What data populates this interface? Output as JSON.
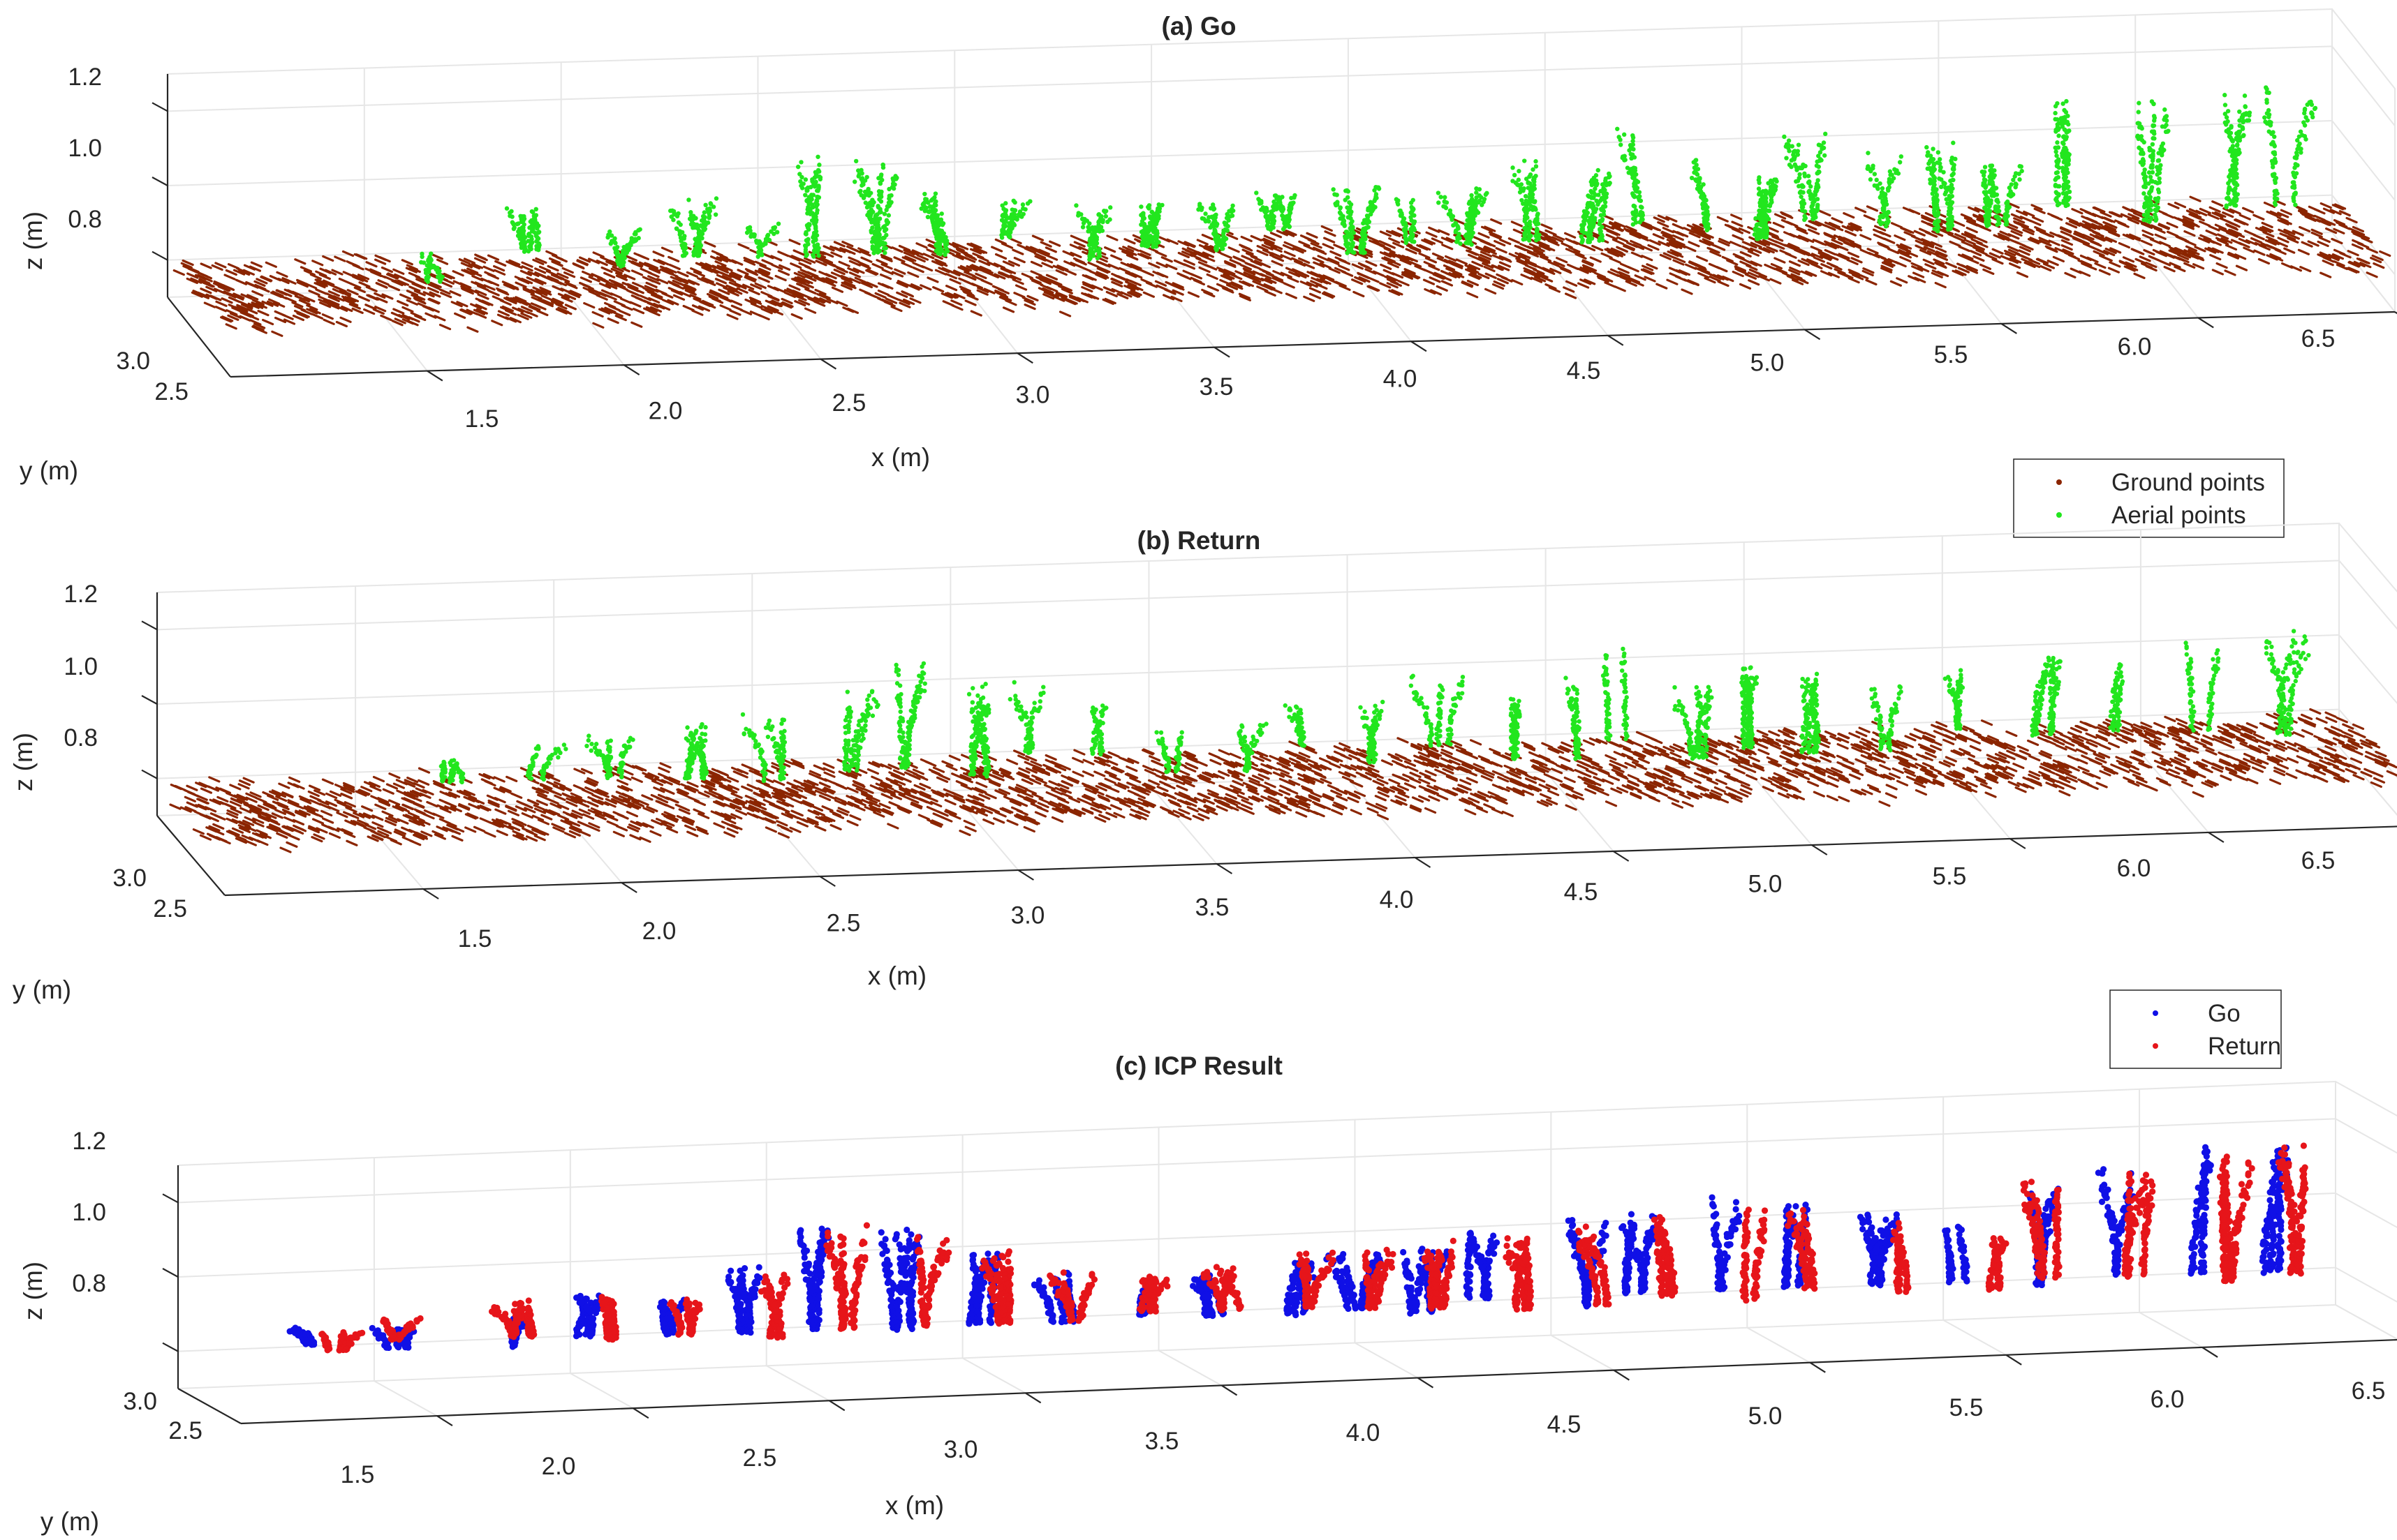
{
  "colors": {
    "ground": "#8b2500",
    "aerial": "#22e61e",
    "go": "#1010e6",
    "return": "#e6151a",
    "grid": "#e6e6e6",
    "axis": "#262626"
  },
  "chart_data": [
    {
      "type": "scatter",
      "projection": "3d",
      "title": "(a) Go",
      "xlabel": "x (m)",
      "ylabel": "y (m)",
      "zlabel": "z (m)",
      "xlim": [
        1.0,
        6.5
      ],
      "ylim": [
        2.4,
        3.0
      ],
      "zlim": [
        0.7,
        1.3
      ],
      "x_ticks": [
        "1.5",
        "2.0",
        "2.5",
        "3.0",
        "3.5",
        "4.0",
        "4.5",
        "5.0",
        "5.5",
        "6.0",
        "6.5"
      ],
      "y_ticks": [
        "2.5",
        "3.0"
      ],
      "z_ticks": [
        "0.8",
        "1.0",
        "1.2"
      ],
      "grid": true,
      "legend": {
        "placement": "bottom-right",
        "entries": [
          "Ground points",
          "Aerial points"
        ]
      },
      "series": [
        {
          "name": "Ground points",
          "kind": "ground",
          "x_range": [
            1.0,
            6.5
          ],
          "z_approx": [
            0.75,
            0.95
          ]
        },
        {
          "name": "Aerial points",
          "kind": "plants",
          "plants_x": [
            1.6,
            1.9,
            2.1,
            2.3,
            2.45,
            2.6,
            2.75,
            2.9,
            3.1,
            3.3,
            3.45,
            3.6,
            3.8,
            3.95,
            4.1,
            4.25,
            4.4,
            4.55,
            4.7,
            4.85,
            5.0,
            5.15,
            5.3,
            5.45,
            5.6,
            5.8,
            6.0,
            6.2,
            6.35
          ],
          "plants_h": [
            0.08,
            0.12,
            0.1,
            0.16,
            0.09,
            0.28,
            0.26,
            0.18,
            0.1,
            0.15,
            0.12,
            0.14,
            0.1,
            0.2,
            0.12,
            0.16,
            0.22,
            0.2,
            0.28,
            0.2,
            0.18,
            0.25,
            0.2,
            0.24,
            0.18,
            0.3,
            0.35,
            0.32,
            0.35
          ]
        }
      ]
    },
    {
      "type": "scatter",
      "projection": "3d",
      "title": "(b) Return",
      "xlabel": "x (m)",
      "ylabel": "y (m)",
      "zlabel": "z (m)",
      "xlim": [
        1.0,
        6.5
      ],
      "ylim": [
        2.4,
        3.0
      ],
      "zlim": [
        0.7,
        1.3
      ],
      "x_ticks": [
        "1.5",
        "2.0",
        "2.5",
        "3.0",
        "3.5",
        "4.0",
        "4.5",
        "5.0",
        "5.5",
        "6.0",
        "6.5"
      ],
      "y_ticks": [
        "2.5",
        "3.0"
      ],
      "z_ticks": [
        "0.8",
        "1.0",
        "1.2"
      ],
      "grid": true,
      "legend": {
        "placement": "bottom-right",
        "entries": [
          "Go",
          "Return"
        ]
      },
      "series": [
        {
          "name": "Ground points",
          "kind": "ground",
          "x_range": [
            1.0,
            6.5
          ],
          "z_approx": [
            0.75,
            0.95
          ]
        },
        {
          "name": "Aerial points",
          "kind": "plants",
          "plants_x": [
            1.7,
            1.9,
            2.1,
            2.3,
            2.5,
            2.7,
            2.85,
            3.0,
            3.2,
            3.35,
            3.5,
            3.7,
            3.85,
            4.0,
            4.2,
            4.35,
            4.5,
            4.65,
            4.8,
            4.95,
            5.1,
            5.3,
            5.5,
            5.7,
            5.9,
            6.1,
            6.3
          ],
          "plants_h": [
            0.06,
            0.1,
            0.12,
            0.15,
            0.18,
            0.22,
            0.3,
            0.25,
            0.2,
            0.15,
            0.12,
            0.14,
            0.12,
            0.16,
            0.2,
            0.18,
            0.22,
            0.26,
            0.2,
            0.24,
            0.22,
            0.18,
            0.16,
            0.22,
            0.2,
            0.26,
            0.3
          ]
        }
      ]
    },
    {
      "type": "scatter",
      "projection": "3d",
      "title": "(c) ICP Result",
      "xlabel": "x (m)",
      "ylabel": "y (m)",
      "zlabel": "z (m)",
      "xlim": [
        1.0,
        6.5
      ],
      "ylim": [
        2.4,
        3.0
      ],
      "zlim": [
        0.7,
        1.3
      ],
      "x_ticks": [
        "1.5",
        "2.0",
        "2.5",
        "3.0",
        "3.5",
        "4.0",
        "4.5",
        "5.0",
        "5.5",
        "6.0",
        "6.5"
      ],
      "y_ticks": [
        "2.5",
        "3.0"
      ],
      "z_ticks": [
        "0.8",
        "1.0",
        "1.2"
      ],
      "grid": true,
      "series": [
        {
          "name": "Go",
          "kind": "plants",
          "plants_x": [
            1.3,
            1.5,
            1.8,
            2.0,
            2.2,
            2.4,
            2.6,
            2.8,
            3.0,
            3.2,
            3.4,
            3.6,
            3.8,
            3.95,
            4.1,
            4.3,
            4.5,
            4.7,
            4.9,
            5.1,
            5.3,
            5.5,
            5.7,
            5.9,
            6.1,
            6.3
          ],
          "plants_h": [
            0.05,
            0.06,
            0.1,
            0.12,
            0.1,
            0.18,
            0.3,
            0.28,
            0.2,
            0.14,
            0.1,
            0.12,
            0.15,
            0.16,
            0.18,
            0.2,
            0.24,
            0.22,
            0.26,
            0.24,
            0.2,
            0.16,
            0.28,
            0.3,
            0.36,
            0.38
          ]
        },
        {
          "name": "Return",
          "kind": "plants",
          "plants_x": [
            1.35,
            1.55,
            1.85,
            2.05,
            2.25,
            2.45,
            2.65,
            2.85,
            3.05,
            3.25,
            3.45,
            3.65,
            3.85,
            4.0,
            4.15,
            4.35,
            4.55,
            4.75,
            4.95,
            5.15,
            5.35,
            5.55,
            5.75,
            5.95,
            6.15,
            6.35
          ],
          "plants_h": [
            0.05,
            0.06,
            0.1,
            0.12,
            0.1,
            0.18,
            0.28,
            0.26,
            0.2,
            0.14,
            0.1,
            0.12,
            0.15,
            0.16,
            0.18,
            0.2,
            0.24,
            0.22,
            0.26,
            0.24,
            0.2,
            0.16,
            0.28,
            0.3,
            0.34,
            0.36
          ]
        }
      ]
    }
  ]
}
